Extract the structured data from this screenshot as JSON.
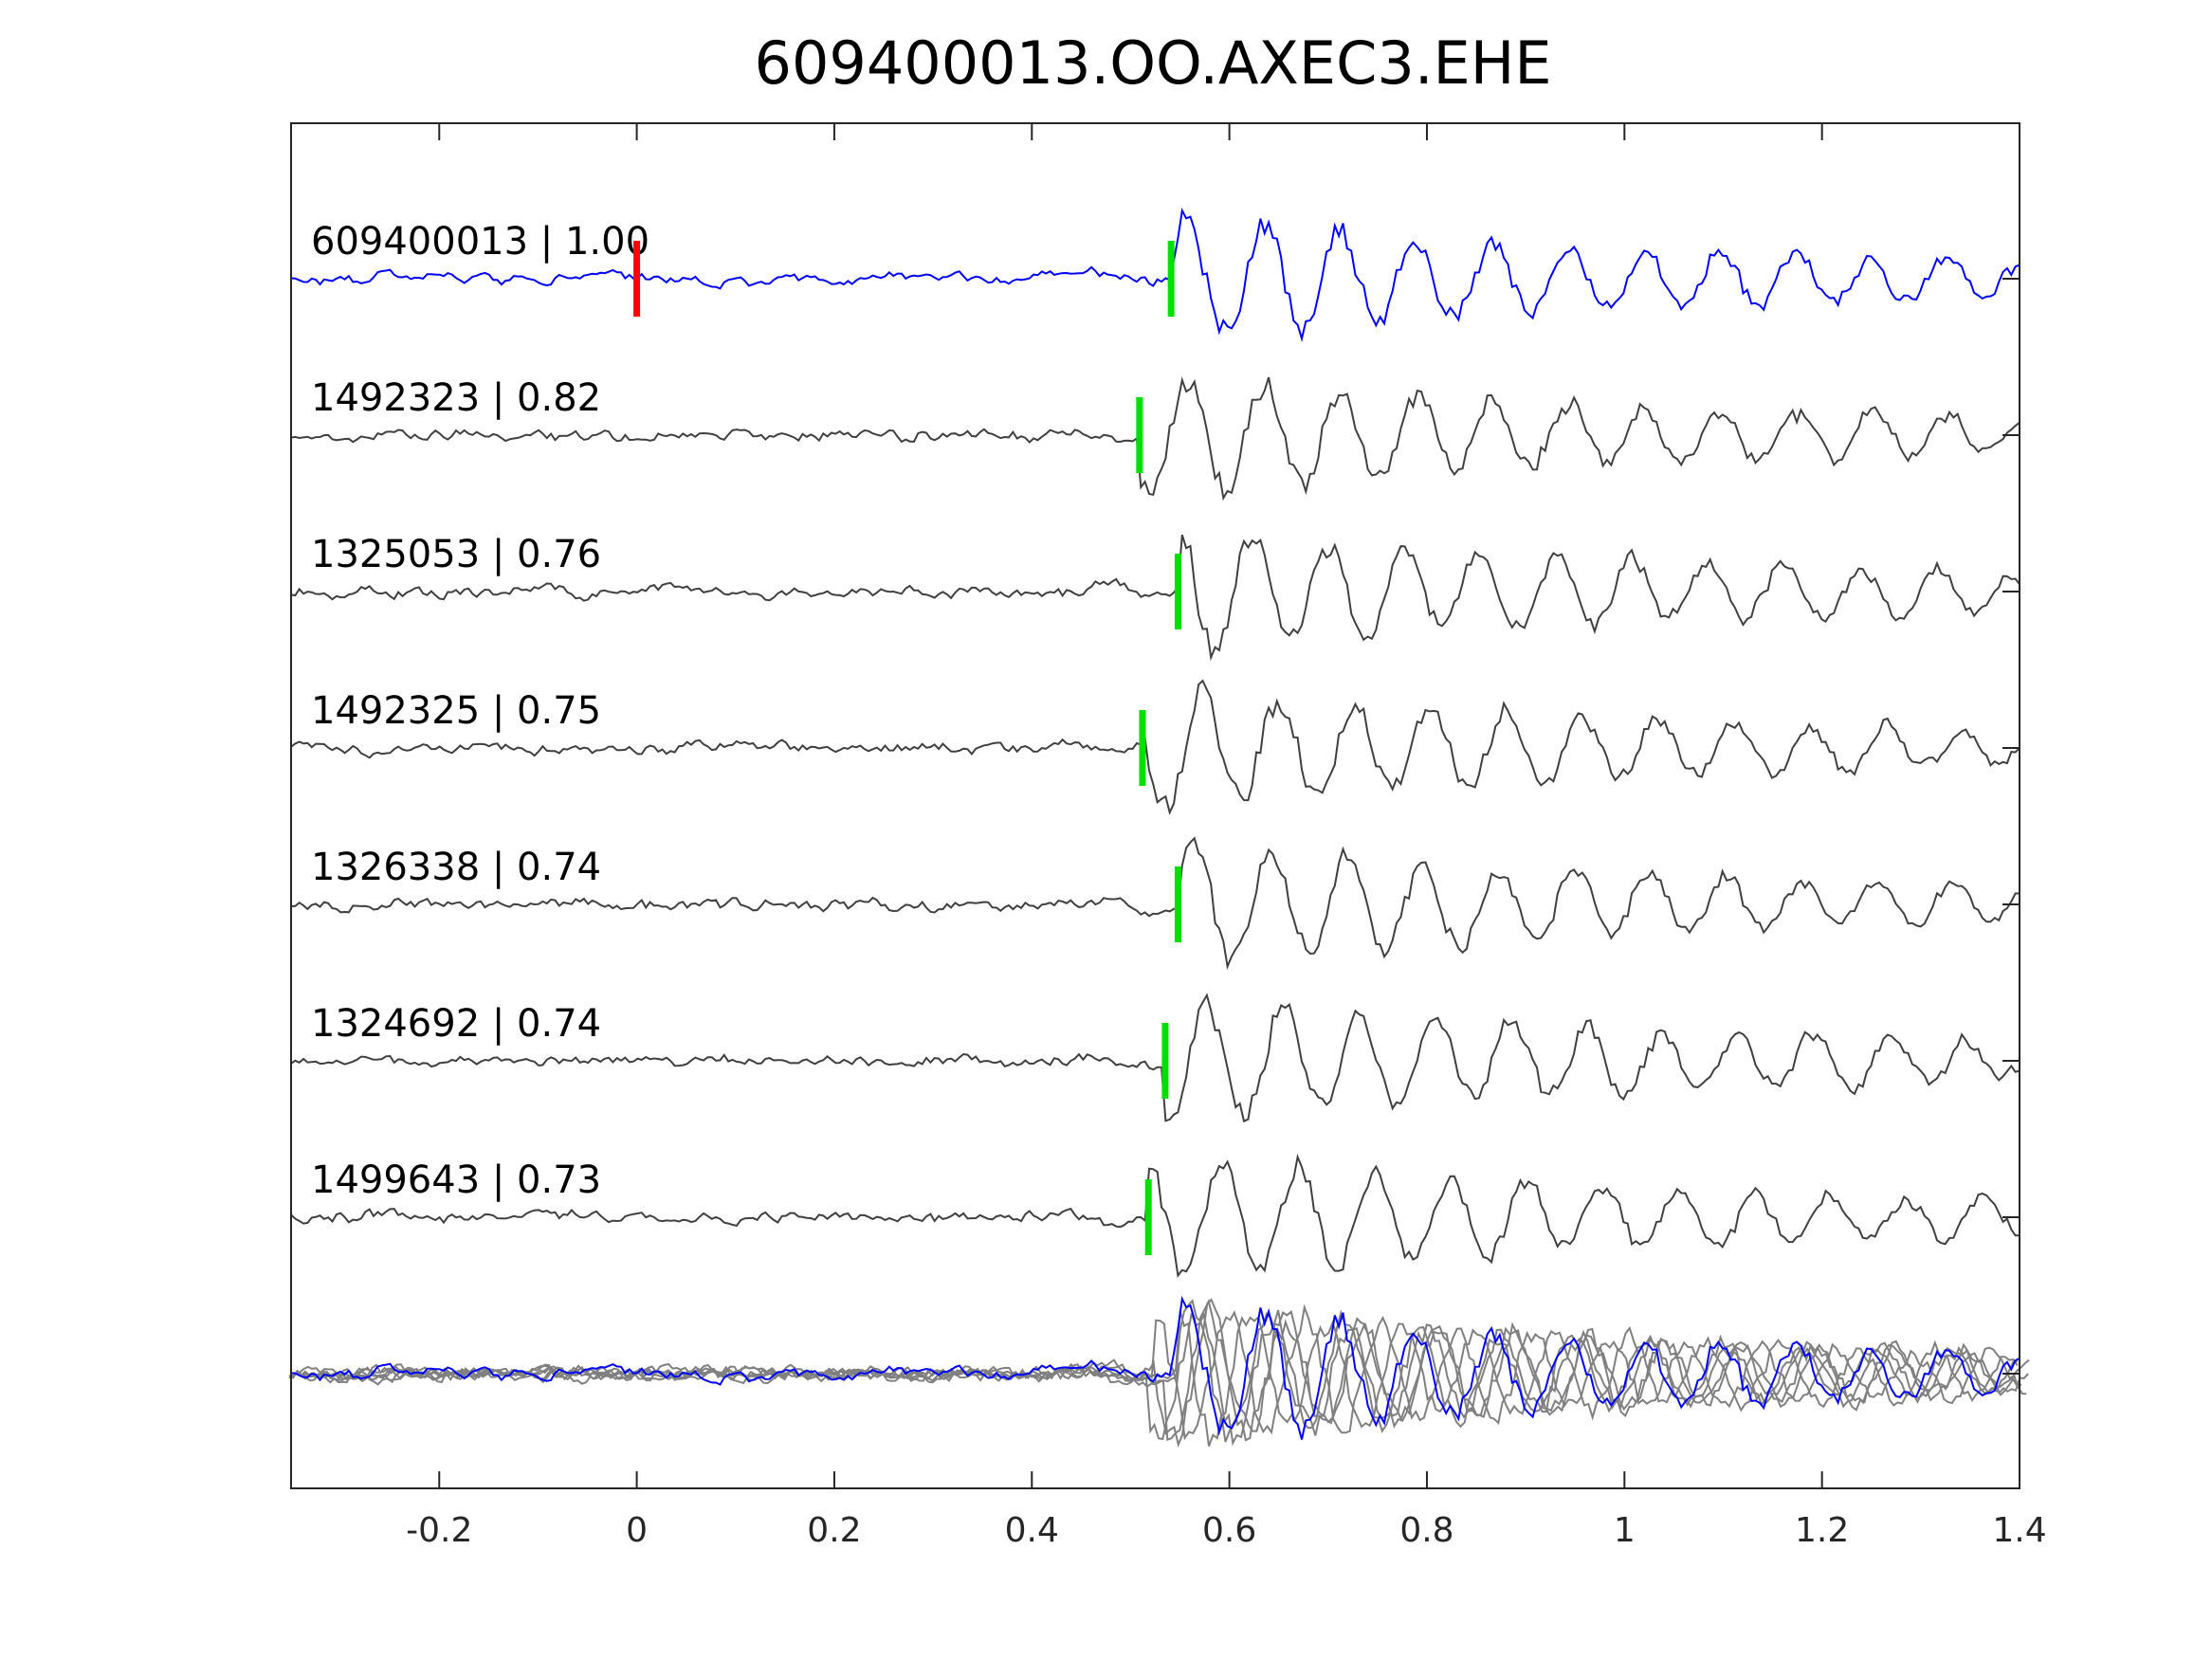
{
  "chart_data": {
    "type": "line",
    "title": "609400013.OO.AXEC3.EHE",
    "xlabel": "",
    "ylabel": "",
    "xlim": [
      -0.35,
      1.4
    ],
    "xticks": [
      -0.2,
      0,
      0.2,
      0.4,
      0.6,
      0.8,
      1,
      1.2,
      1.4
    ],
    "xtick_labels": [
      "-0.2",
      "0",
      "0.2",
      "0.4",
      "0.6",
      "0.8",
      "1",
      "1.2",
      "1.4"
    ],
    "grid": false,
    "reference_marker": {
      "time": 0,
      "color": "#ff0000"
    },
    "pick_color": "#00e000",
    "traces": [
      {
        "label": "609400013 | 1.00",
        "id": "609400013",
        "cc": 1.0,
        "pick_time": 0.541,
        "color": "#0000ff",
        "seed": 11
      },
      {
        "label": "1492323 | 0.82",
        "id": "1492323",
        "cc": 0.82,
        "pick_time": 0.509,
        "color": "#404040",
        "seed": 23
      },
      {
        "label": "1325053 | 0.76",
        "id": "1325053",
        "cc": 0.76,
        "pick_time": 0.548,
        "color": "#404040",
        "seed": 37
      },
      {
        "label": "1492325 | 0.75",
        "id": "1492325",
        "cc": 0.75,
        "pick_time": 0.512,
        "color": "#404040",
        "seed": 41
      },
      {
        "label": "1326338 | 0.74",
        "id": "1326338",
        "cc": 0.74,
        "pick_time": 0.548,
        "color": "#404040",
        "seed": 53
      },
      {
        "label": "1324692 | 0.74",
        "id": "1324692",
        "cc": 0.74,
        "pick_time": 0.535,
        "color": "#404040",
        "seed": 67
      },
      {
        "label": "1499643 | 0.73",
        "id": "1499643",
        "cc": 0.73,
        "pick_time": 0.518,
        "color": "#404040",
        "seed": 79
      }
    ],
    "stack": {
      "overlay_color": "#808080",
      "template_color": "#0000ff"
    }
  }
}
